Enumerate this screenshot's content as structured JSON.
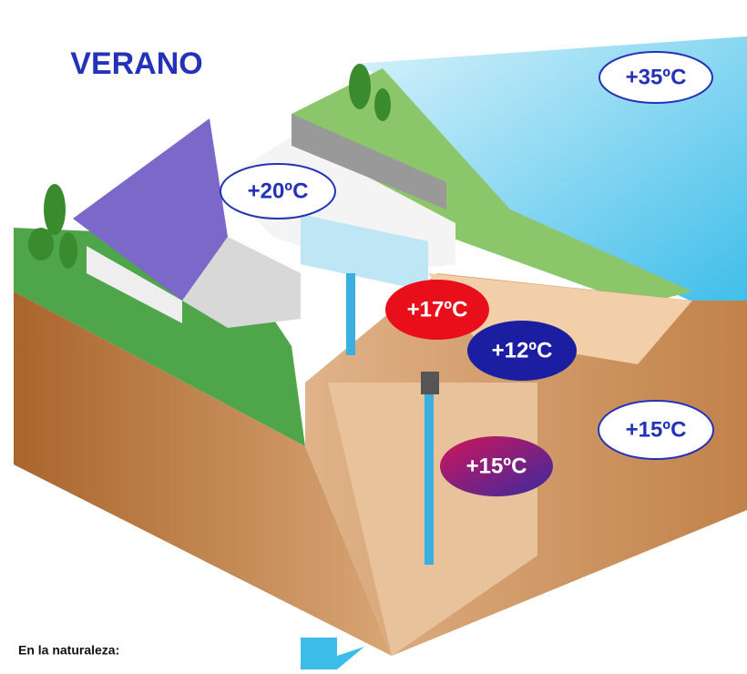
{
  "title": "VERANO",
  "labels": [
    {
      "text": "+35ºC"
    },
    {
      "text": "+20ºC"
    },
    {
      "text": "+17ºC"
    },
    {
      "text": "+12ºC"
    },
    {
      "text": "+15ºC"
    },
    {
      "text": "+15ºC"
    }
  ],
  "caption": "En la naturaleza:"
}
